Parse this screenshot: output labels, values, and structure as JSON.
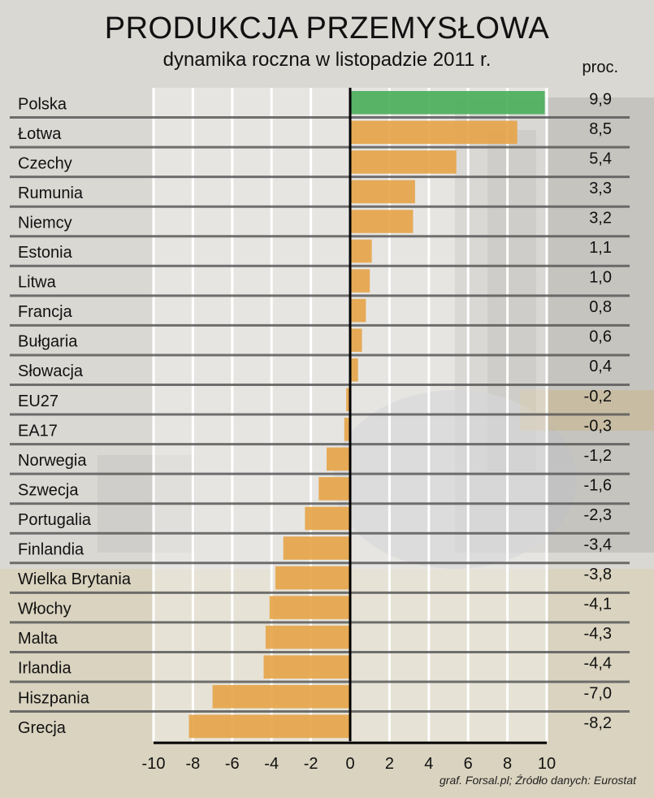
{
  "chart_data": {
    "type": "bar",
    "orientation": "horizontal",
    "title": "PRODUKCJA PRZEMYSŁOWA",
    "subtitle": "dynamika roczna w listopadzie 2011 r.",
    "unit_label": "proc.",
    "categories": [
      "Polska",
      "Łotwa",
      "Czechy",
      "Rumunia",
      "Niemcy",
      "Estonia",
      "Litwa",
      "Francja",
      "Bułgaria",
      "Słowacja",
      "EU27",
      "EA17",
      "Norwegia",
      "Szwecja",
      "Portugalia",
      "Finlandia",
      "Wielka Brytania",
      "Włochy",
      "Malta",
      "Irlandia",
      "Hiszpania",
      "Grecja"
    ],
    "values": [
      9.9,
      8.5,
      5.4,
      3.3,
      3.2,
      1.1,
      1.0,
      0.8,
      0.6,
      0.4,
      -0.2,
      -0.3,
      -1.2,
      -1.6,
      -2.3,
      -3.4,
      -3.8,
      -4.1,
      -4.3,
      -4.4,
      -7.0,
      -8.2
    ],
    "value_labels": [
      "9,9",
      "8,5",
      "5,4",
      "3,3",
      "3,2",
      "1,1",
      "1,0",
      "0,8",
      "0,6",
      "0,4",
      "-0,2",
      "-0,3",
      "-1,2",
      "-1,6",
      "-2,3",
      "-3,4",
      "-3,8",
      "-4,1",
      "-4,3",
      "-4,4",
      "-7,0",
      "-8,2"
    ],
    "highlight_category": "Polska",
    "xlim": [
      -10,
      10
    ],
    "x_ticks": [
      -10,
      -8,
      -6,
      -4,
      -2,
      0,
      2,
      4,
      6,
      8,
      10
    ],
    "grid": true,
    "colors": {
      "bar": "#e6a54b",
      "highlight": "#4caf5c",
      "grid": "#ffffff",
      "row_line": "#5a5a5a",
      "axis": "#000000"
    }
  },
  "source_note": "graf. Forsal.pl; Źródło danych: Eurostat"
}
